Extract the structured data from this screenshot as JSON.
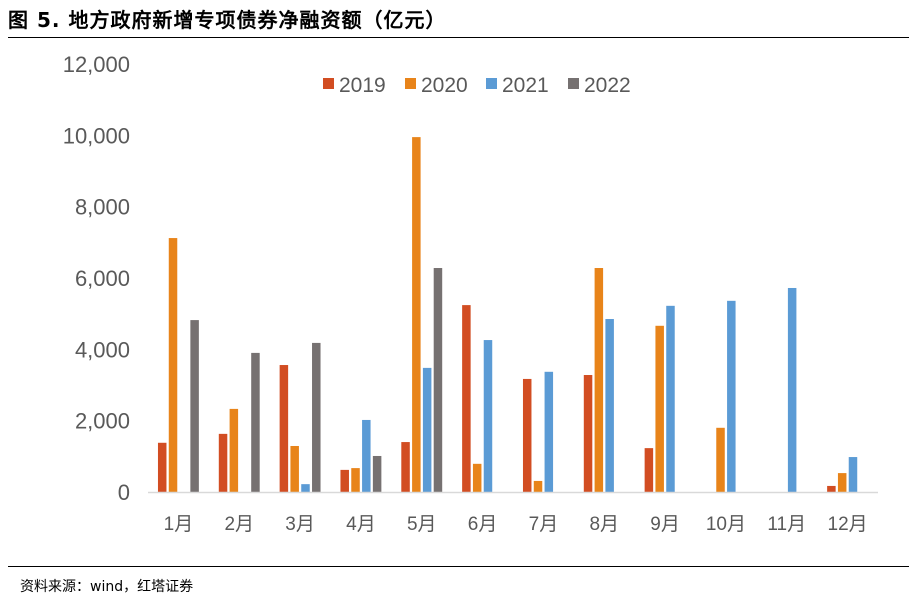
{
  "title": "图 5. 地方政府新增专项债券净融资额（亿元）",
  "source": "资料来源：wind，红塔证券",
  "chart_data": {
    "type": "bar",
    "title": "图 5. 地方政府新增专项债券净融资额（亿元）",
    "xlabel": "",
    "ylabel": "",
    "ylim": [
      0,
      12000
    ],
    "yticks": [
      0,
      2000,
      4000,
      6000,
      8000,
      10000,
      12000
    ],
    "ytick_labels": [
      "0",
      "2,000",
      "4,000",
      "6,000",
      "8,000",
      "10,000",
      "12,000"
    ],
    "categories": [
      "1月",
      "2月",
      "3月",
      "4月",
      "5月",
      "6月",
      "7月",
      "8月",
      "9月",
      "10月",
      "11月",
      "12月"
    ],
    "legend_position": "top",
    "series": [
      {
        "name": "2019",
        "color": "#D24D22",
        "values": [
          1380,
          1630,
          3560,
          620,
          1400,
          5240,
          3170,
          3280,
          1230,
          null,
          null,
          170
        ]
      },
      {
        "name": "2020",
        "color": "#E8841A",
        "values": [
          7120,
          2330,
          1290,
          670,
          9950,
          790,
          310,
          6280,
          4660,
          1800,
          null,
          530
        ]
      },
      {
        "name": "2021",
        "color": "#5B9BD5",
        "values": [
          null,
          null,
          220,
          2020,
          3480,
          4260,
          3370,
          4850,
          5220,
          5360,
          5720,
          980
        ]
      },
      {
        "name": "2022",
        "color": "#767171",
        "values": [
          4820,
          3900,
          4180,
          1010,
          6280,
          null,
          null,
          null,
          null,
          null,
          null,
          null
        ]
      }
    ]
  }
}
